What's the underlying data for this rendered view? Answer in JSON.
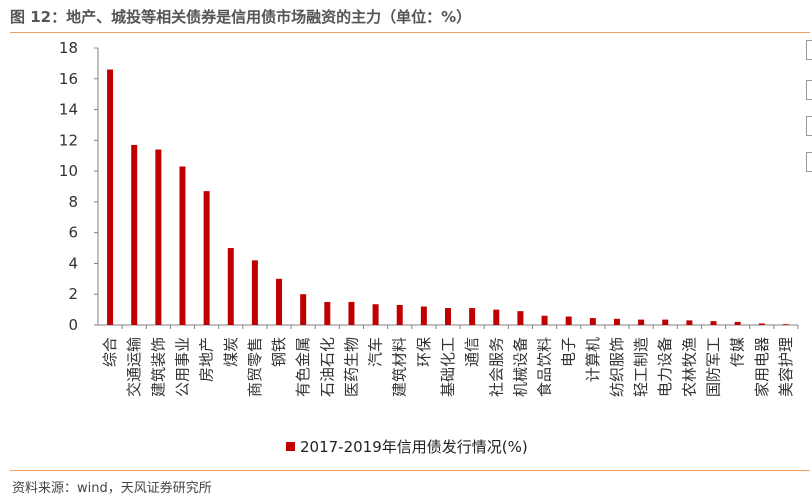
{
  "header": {
    "title": "图 12：地产、城投等相关债券是信用债市场融资的主力（单位：%）"
  },
  "footer": {
    "source": "资料来源：wind，天风证券研究所"
  },
  "chart_data": {
    "type": "bar",
    "categories": [
      "综合",
      "交通运输",
      "建筑装饰",
      "公用事业",
      "房地产",
      "煤炭",
      "商贸零售",
      "钢铁",
      "有色金属",
      "石油石化",
      "医药生物",
      "汽车",
      "建筑材料",
      "环保",
      "基础化工",
      "通信",
      "社会服务",
      "机械设备",
      "食品饮料",
      "电子",
      "计算机",
      "纺织服饰",
      "轻工制造",
      "电力设备",
      "农林牧渔",
      "国防军工",
      "传媒",
      "家用电器",
      "美容护理"
    ],
    "series": [
      {
        "name": "2017-2019年信用债发行情况(%)",
        "values": [
          16.6,
          11.7,
          11.4,
          10.3,
          8.7,
          5.0,
          4.2,
          3.0,
          2.0,
          1.5,
          1.5,
          1.35,
          1.3,
          1.2,
          1.1,
          1.1,
          1.0,
          0.9,
          0.6,
          0.55,
          0.45,
          0.4,
          0.35,
          0.35,
          0.3,
          0.25,
          0.2,
          0.1,
          0.05
        ]
      }
    ],
    "ylim": [
      0,
      18
    ],
    "yticks": [
      0,
      2,
      4,
      6,
      8,
      10,
      12,
      14,
      16,
      18
    ],
    "grid": false,
    "legend": "bottom-center",
    "colors": {
      "bar": "#c00000",
      "axis": "#808080"
    }
  }
}
